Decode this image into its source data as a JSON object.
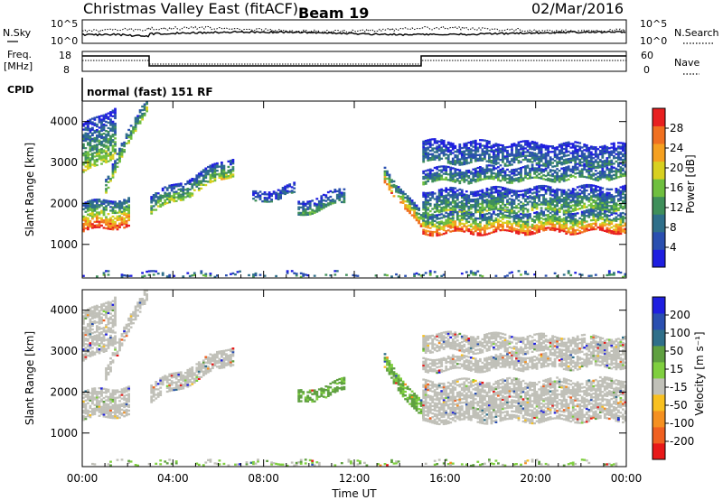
{
  "header": {
    "title": "Christmas Valley East (fitACF)",
    "beam": "Beam 19",
    "date": "02/Mar/2016"
  },
  "aux_panels": {
    "nsky_label": "N.Sky",
    "nsky_ticks": [
      "10^5",
      "10^0"
    ],
    "nsearch_label": "N.Search",
    "nsearch_ticks": [
      "10^5",
      "10^0"
    ],
    "freq_label_1": "Freq.",
    "freq_label_2": "[MHz]",
    "freq_ticks": [
      "18",
      "8"
    ],
    "nave_label": "Nave",
    "nave_ticks": [
      "60",
      "0"
    ],
    "cpid_label": "CPID",
    "cpid_text": "normal (fast) 151 RF"
  },
  "colors": {
    "power_scale": [
      "#1f1fe0",
      "#2a4fb0",
      "#2f6f8a",
      "#3f8f5a",
      "#6fbf3f",
      "#d8d020",
      "#f5a020",
      "#f07020",
      "#e82020"
    ],
    "velocity_scale": [
      "#1f1fe0",
      "#2a4fb0",
      "#2f6f8a",
      "#5fa040",
      "#7fcf3f",
      "#c0c0b8",
      "#f8c020",
      "#f59020",
      "#f06020",
      "#e81818"
    ]
  },
  "chart_data": [
    {
      "type": "heatmap",
      "name": "power",
      "xlabel": "Time UT",
      "ylabel": "Slant Range [km]",
      "colorbar_label": "Power [dB]",
      "colorbar_ticks": [
        "28",
        "24",
        "20",
        "16",
        "12",
        "8",
        "4"
      ],
      "colorbar_range": [
        0,
        32
      ],
      "x_ticks": [
        "00:00",
        "04:00",
        "08:00",
        "12:00",
        "16:00",
        "20:00",
        "00:00"
      ],
      "xlim_hours": [
        0,
        24
      ],
      "y_ticks": [
        "4000",
        "3000",
        "2000",
        "1000"
      ],
      "ylim": [
        180,
        4500
      ],
      "grid": false,
      "echo_regions": [
        {
          "t0": 0.0,
          "t1": 2.1,
          "r_lo_start": 1300,
          "r_lo_end": 1450,
          "thickness": 700,
          "pmax": 30
        },
        {
          "t0": 0.0,
          "t1": 1.5,
          "r_lo_start": 2700,
          "r_lo_end": 3200,
          "thickness": 1200,
          "pmax": 18
        },
        {
          "t0": 1.0,
          "t1": 2.9,
          "r_lo_start": 2300,
          "r_lo_end": 4400,
          "thickness": 350,
          "pmax": 18
        },
        {
          "t0": 3.0,
          "t1": 6.6,
          "r_lo_start": 1750,
          "r_lo_end": 2700,
          "thickness": 450,
          "pmax": 18
        },
        {
          "t0": 7.5,
          "t1": 9.3,
          "r_lo_start": 2000,
          "r_lo_end": 2200,
          "thickness": 250,
          "pmax": 8
        },
        {
          "t0": 9.5,
          "t1": 11.5,
          "r_lo_start": 1700,
          "r_lo_end": 2000,
          "thickness": 350,
          "pmax": 12
        },
        {
          "t0": 13.3,
          "t1": 15.0,
          "r_lo_start": 2500,
          "r_lo_end": 1300,
          "thickness": 400,
          "pmax": 26
        },
        {
          "t0": 15.0,
          "t1": 24.0,
          "r_lo_start": 1250,
          "r_lo_end": 1300,
          "thickness": 500,
          "pmax": 30
        },
        {
          "t0": 15.0,
          "t1": 24.0,
          "r_lo_start": 1750,
          "r_lo_end": 1850,
          "thickness": 550,
          "pmax": 16
        },
        {
          "t0": 15.0,
          "t1": 24.0,
          "r_lo_start": 2500,
          "r_lo_end": 2600,
          "thickness": 350,
          "pmax": 14
        },
        {
          "t0": 15.0,
          "t1": 24.0,
          "r_lo_start": 3000,
          "r_lo_end": 2900,
          "thickness": 500,
          "pmax": 10
        },
        {
          "t0": 0.0,
          "t1": 24.0,
          "r_lo_start": 180,
          "r_lo_end": 180,
          "thickness": 130,
          "pmax": 12
        }
      ]
    },
    {
      "type": "heatmap",
      "name": "velocity",
      "xlabel": "Time UT",
      "ylabel": "Slant Range [km]",
      "colorbar_label": "Velocity [m s⁻¹]",
      "colorbar_ticks": [
        "200",
        "100",
        "50",
        "15",
        "-15",
        "-50",
        "-100",
        "-200"
      ],
      "x_ticks": [
        "00:00",
        "04:00",
        "08:00",
        "12:00",
        "16:00",
        "20:00",
        "00:00"
      ],
      "xlim_hours": [
        0,
        24
      ],
      "y_ticks": [
        "4000",
        "3000",
        "2000",
        "1000"
      ],
      "ylim": [
        180,
        4500
      ],
      "grid": false,
      "echo_regions": [
        {
          "t0": 0.0,
          "t1": 2.1,
          "r_lo_start": 1300,
          "r_lo_end": 1450,
          "thickness": 700,
          "vel": 0
        },
        {
          "t0": 0.0,
          "t1": 1.5,
          "r_lo_start": 2700,
          "r_lo_end": 3200,
          "thickness": 1200,
          "vel": 0
        },
        {
          "t0": 1.0,
          "t1": 2.9,
          "r_lo_start": 2300,
          "r_lo_end": 4400,
          "thickness": 350,
          "vel": 0
        },
        {
          "t0": 3.0,
          "t1": 6.6,
          "r_lo_start": 1750,
          "r_lo_end": 2700,
          "thickness": 450,
          "vel": 0
        },
        {
          "t0": 9.5,
          "t1": 11.5,
          "r_lo_start": 1700,
          "r_lo_end": 2000,
          "thickness": 300,
          "vel": 40
        },
        {
          "t0": 13.3,
          "t1": 15.0,
          "r_lo_start": 2500,
          "r_lo_end": 1300,
          "thickness": 400,
          "vel": 35
        },
        {
          "t0": 15.0,
          "t1": 24.0,
          "r_lo_start": 1250,
          "r_lo_end": 1300,
          "thickness": 1000,
          "vel": 0
        },
        {
          "t0": 15.0,
          "t1": 24.0,
          "r_lo_start": 2500,
          "r_lo_end": 2600,
          "thickness": 350,
          "vel": 0
        },
        {
          "t0": 15.0,
          "t1": 24.0,
          "r_lo_start": 3000,
          "r_lo_end": 2900,
          "thickness": 450,
          "vel": 0
        },
        {
          "t0": 0.0,
          "t1": 24.0,
          "r_lo_start": 180,
          "r_lo_end": 180,
          "thickness": 130,
          "vel": 20
        }
      ]
    }
  ]
}
